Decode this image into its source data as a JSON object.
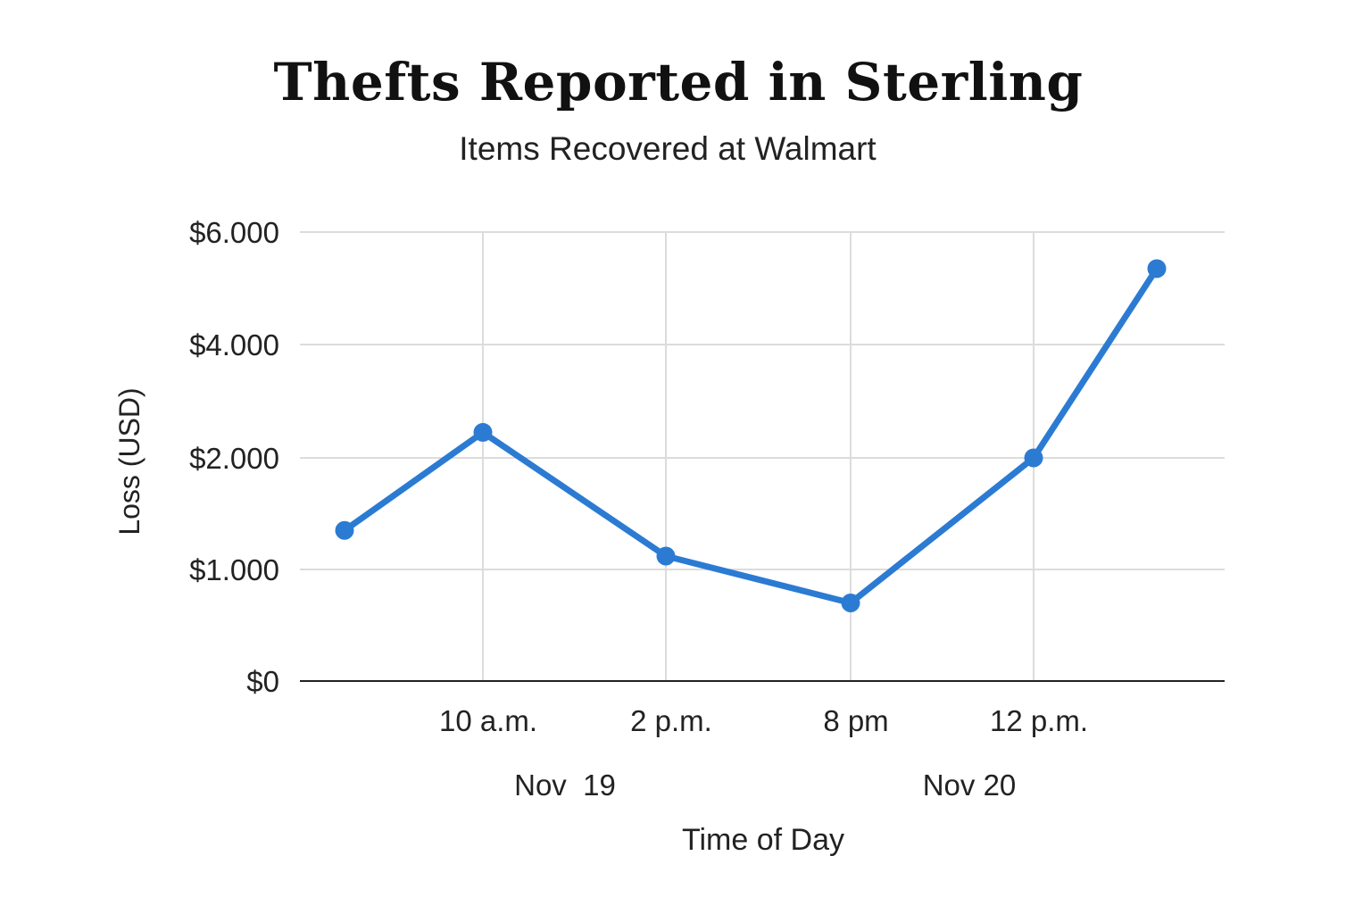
{
  "chart_data": {
    "type": "line",
    "title": "Thefts Reported in Sterling",
    "subtitle": "Items Recovered at Walmart",
    "xlabel": "Time of Day",
    "ylabel": "Loss (USD)",
    "y_ticks": [
      {
        "label": "$6.000",
        "value": 6000
      },
      {
        "label": "$4.000",
        "value": 4000
      },
      {
        "label": "$2.000",
        "value": 2000
      },
      {
        "label": "$1.000",
        "value": 1000
      },
      {
        "label": "$0",
        "value": 0
      }
    ],
    "x_ticks": [
      "10 a.m.",
      "2 p.m.",
      "8 pm",
      "12 p.m."
    ],
    "date_labels": [
      "Nov  19",
      "Nov 20"
    ],
    "series": [
      {
        "values": [
          1350,
          2450,
          1120,
          700,
          2000,
          5350
        ]
      }
    ],
    "grid": true,
    "line_color": "#2b7bd3"
  }
}
